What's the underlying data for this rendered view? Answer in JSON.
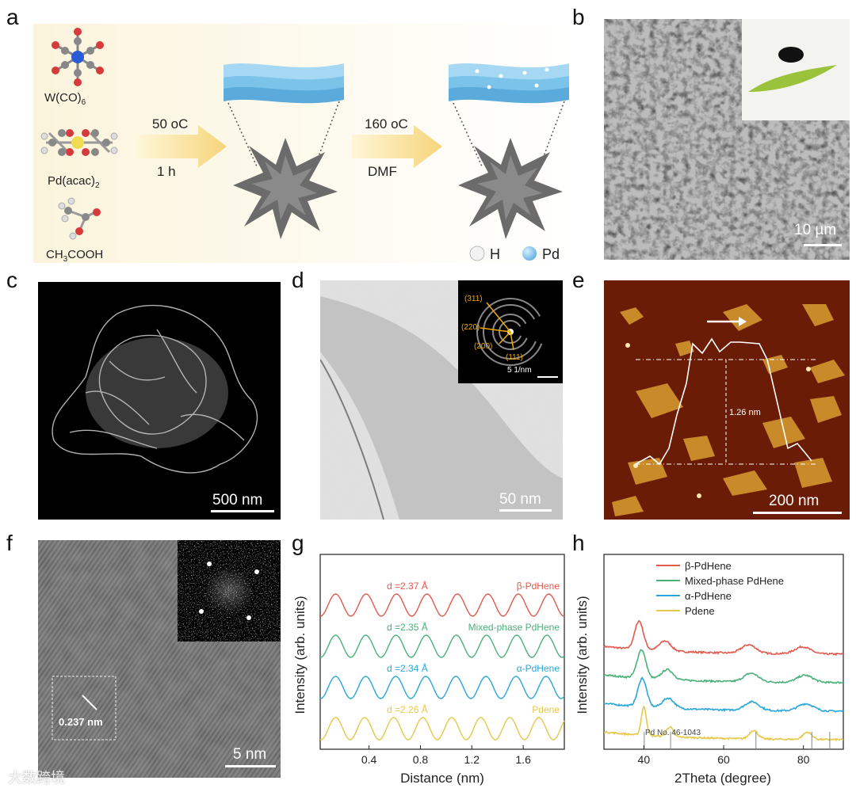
{
  "panel_labels": {
    "a": "a",
    "b": "b",
    "c": "c",
    "d": "d",
    "e": "e",
    "f": "f",
    "g": "g",
    "h": "h"
  },
  "a": {
    "precursors": [
      "W(CO)",
      "Pd(acac)",
      "CH3COOH"
    ],
    "precursor_subscripts": [
      "6",
      "2"
    ],
    "precursor_ch3": "CH",
    "precursor_sub3": "3",
    "precursor_cooh": "COOH",
    "step1_temp": "50 oC",
    "step1_time": "1 h",
    "step2_temp": "160 oC",
    "step2_solvent": "DMF",
    "legend_h": "H",
    "legend_pd": "Pd",
    "colors": {
      "arrow": "#f7d679",
      "pd_atom": "#7cc3ea",
      "h_atom": "#eeeeee",
      "flower": "#6b6b6b"
    }
  },
  "b": {
    "scale_bar": "10 µm"
  },
  "c": {
    "scale_bar": "500 nm"
  },
  "d": {
    "scale_bar": "50 nm",
    "inset_scale_bar": "5 1/nm",
    "saed_labels": [
      "(311)",
      "(220)",
      "(200)",
      "(111)"
    ]
  },
  "e": {
    "scale_bar": "200 nm",
    "height_label": "1.26 nm"
  },
  "f": {
    "scale_bar": "5 nm",
    "lattice_label": "0.237 nm"
  },
  "chart_data": [
    {
      "type": "line",
      "panel": "g",
      "xlabel": "Distance (nm)",
      "ylabel": "Intensity (arb. units)",
      "xlim": [
        0.02,
        1.92
      ],
      "x_ticks": [
        0.4,
        0.8,
        1.2,
        1.6
      ],
      "x_tick_labels": [
        "0.4",
        "0.8",
        "1.2",
        "1.6"
      ],
      "series": [
        {
          "name": "β-PdHene",
          "d_label": "d =2.37 Å",
          "period": 0.237,
          "offset": 3,
          "color": "#e15a4e"
        },
        {
          "name": "Mixed-phase PdHene",
          "d_label": "d =2.35 Å",
          "period": 0.235,
          "offset": 2,
          "color": "#4cb07a"
        },
        {
          "name": "α-PdHene",
          "d_label": "d =2.34 Å",
          "period": 0.234,
          "offset": 1,
          "color": "#2aa7d6"
        },
        {
          "name": "Pdene",
          "d_label": "d =2.26 Å",
          "period": 0.226,
          "offset": 0,
          "color": "#e6c84a"
        }
      ]
    },
    {
      "type": "line",
      "panel": "h",
      "xlabel": "2Theta (degree)",
      "ylabel": "Intensity (arb. units)",
      "xlim": [
        30,
        90
      ],
      "x_ticks": [
        40,
        60,
        80
      ],
      "x_tick_labels": [
        "40",
        "60",
        "80"
      ],
      "reference_label": "Pd No. 46-1043",
      "reference_peaks": [
        40.1,
        46.7,
        68.1,
        82.1,
        86.6
      ],
      "peaks": [
        40.0,
        46.5,
        67.5,
        81.0
      ],
      "series": [
        {
          "name": "β-PdHene",
          "color": "#e15a4e",
          "shift": -1.2,
          "baseline": 3.05
        },
        {
          "name": "Mixed-phase PdHene",
          "color": "#4cb07a",
          "shift": -0.6,
          "baseline": 2.05
        },
        {
          "name": "α-PdHene",
          "color": "#2aa7d6",
          "shift": -0.4,
          "baseline": 1.05
        },
        {
          "name": "Pdene",
          "color": "#e6c84a",
          "shift": 0.0,
          "baseline": 0.05
        }
      ]
    }
  ],
  "watermark": "大数跨境"
}
